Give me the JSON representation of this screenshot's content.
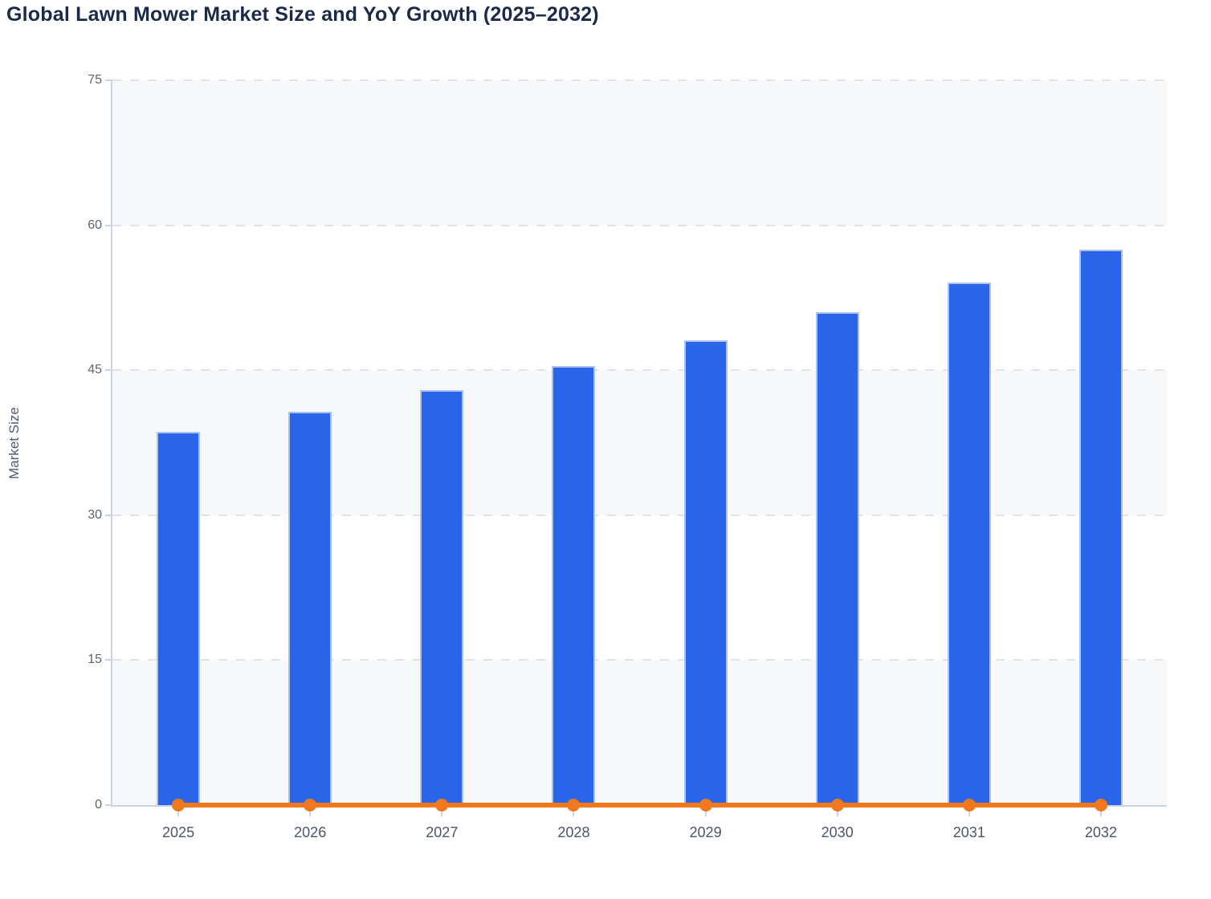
{
  "page": {
    "title": "Global Lawn Mower Market Size and YoY Growth (2025–2032)"
  },
  "chart_data": {
    "type": "bar",
    "title": "Global Lawn Mower Market Size and YoY Growth (2025–2032)",
    "xlabel": "",
    "ylabel": "Market Size",
    "categories": [
      "2025",
      "2026",
      "2027",
      "2028",
      "2029",
      "2030",
      "2031",
      "2032"
    ],
    "series": [
      {
        "name": "Market Size",
        "type": "bar",
        "values": [
          38.6,
          40.7,
          42.9,
          45.4,
          48.1,
          51.0,
          54.1,
          57.5
        ]
      },
      {
        "name": "YoY Growth",
        "type": "line",
        "values": [
          0.05,
          0.054,
          0.054,
          0.058,
          0.059,
          0.06,
          0.061,
          0.063
        ]
      }
    ],
    "ylim": [
      0,
      75
    ],
    "yticks": [
      0,
      15,
      30,
      45,
      60,
      75
    ],
    "ytick_labels": [
      "0",
      "15",
      "30",
      "45",
      "60",
      "75"
    ],
    "grid": "horizontal dashed",
    "legend": "none",
    "note": "YoY growth line renders flat along the zero baseline of the shared axis"
  },
  "colors": {
    "bar_fill": "#2a64e9",
    "bar_border": "#a9c2f2",
    "line": "#f2781e",
    "axis": "#c9d3e9",
    "grid": "#e0e3e9",
    "band_shaded": "#f7f8fa",
    "band_plain": "#ffffff",
    "title_text": "#1c2a4a",
    "y_tick_text": "#5d6570",
    "x_tick_text": "#4b5569",
    "axis_title_text": "#4f5b73"
  }
}
